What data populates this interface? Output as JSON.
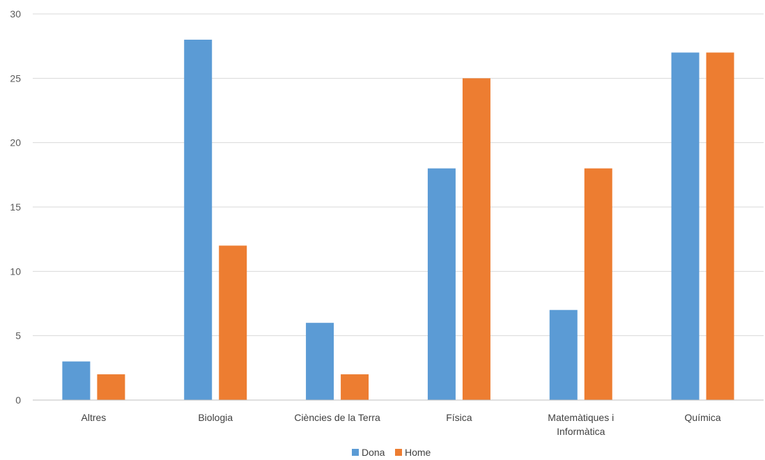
{
  "chart_data": {
    "type": "bar",
    "categories": [
      "Altres",
      "Biologia",
      "Ciències de la Terra",
      "Física",
      "Matemàtiques i Informàtica",
      "Química"
    ],
    "category_lines": [
      [
        "Altres"
      ],
      [
        "Biologia"
      ],
      [
        "Ciències de la Terra"
      ],
      [
        "Física"
      ],
      [
        "Matemàtiques i",
        "Informàtica"
      ],
      [
        "Química"
      ]
    ],
    "series": [
      {
        "name": "Dona",
        "color": "#5b9bd5",
        "values": [
          3,
          28,
          6,
          18,
          7,
          27
        ]
      },
      {
        "name": "Home",
        "color": "#ed7d31",
        "values": [
          2,
          12,
          2,
          25,
          18,
          27
        ]
      }
    ],
    "title": "",
    "xlabel": "",
    "ylabel": "",
    "ylim": [
      0,
      30
    ],
    "yticks": [
      0,
      5,
      10,
      15,
      20,
      25,
      30
    ],
    "grid": true,
    "legend_position": "bottom"
  }
}
